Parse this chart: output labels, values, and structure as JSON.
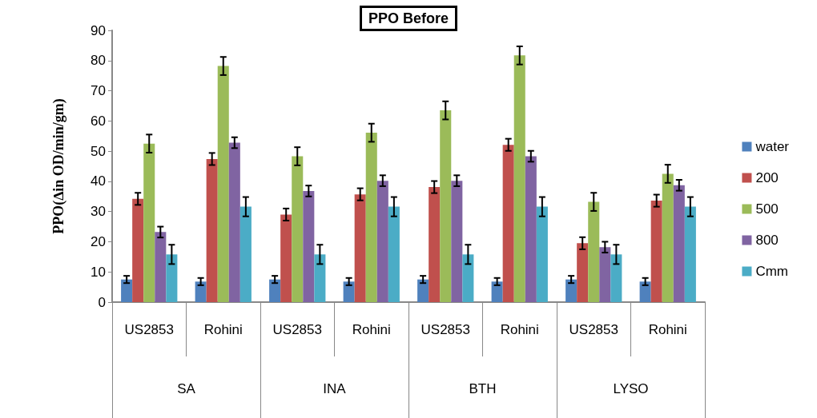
{
  "chart_data": {
    "type": "bar",
    "title": "PPO Before",
    "ylabel": "PPO(∆in OD/min/gm)",
    "categories": [
      "US2853",
      "Rohini",
      "US2853",
      "Rohini",
      "US2853",
      "Rohini",
      "US2853",
      "Rohini"
    ],
    "annotations": [
      "SA",
      "INA",
      "BTH",
      "LYSO"
    ],
    "series": [
      {
        "name": "water",
        "color": "#4f81bd",
        "values": [
          7.5,
          6.8,
          7.5,
          6.8,
          7.5,
          6.8,
          7.5,
          6.8
        ],
        "errors": [
          1.2,
          1.2,
          1.2,
          1.2,
          1.2,
          1.2,
          1.2,
          1.2
        ]
      },
      {
        "name": "200",
        "color": "#c0504d",
        "values": [
          34.2,
          47.4,
          29,
          35.7,
          38.1,
          52.1,
          19.5,
          33.6
        ],
        "errors": [
          2,
          2,
          2,
          2,
          2,
          2,
          2,
          2
        ]
      },
      {
        "name": "500",
        "color": "#9bbb59",
        "values": [
          52.5,
          78.2,
          48.3,
          56.1,
          63.5,
          81.7,
          33.2,
          42.5
        ],
        "errors": [
          3,
          3,
          3,
          3,
          3,
          3,
          3,
          3
        ]
      },
      {
        "name": "800",
        "color": "#8064a2",
        "values": [
          23.2,
          52.8,
          36.8,
          40.2,
          40.2,
          48.3,
          18.2,
          38.7
        ],
        "errors": [
          1.8,
          1.8,
          1.8,
          1.8,
          1.8,
          1.8,
          1.8,
          1.8
        ]
      },
      {
        "name": "Cmm",
        "color": "#4bacc6",
        "values": [
          15.8,
          31.6,
          15.8,
          31.6,
          15.8,
          31.6,
          15.8,
          31.6
        ],
        "errors": [
          3.2,
          3.2,
          3.2,
          3.2,
          3.2,
          3.2,
          3.2,
          3.2
        ]
      }
    ],
    "ylim": [
      0,
      90
    ],
    "yticks": [
      0,
      10,
      20,
      30,
      40,
      50,
      60,
      70,
      80,
      90
    ],
    "grid": false,
    "legend": "right"
  }
}
